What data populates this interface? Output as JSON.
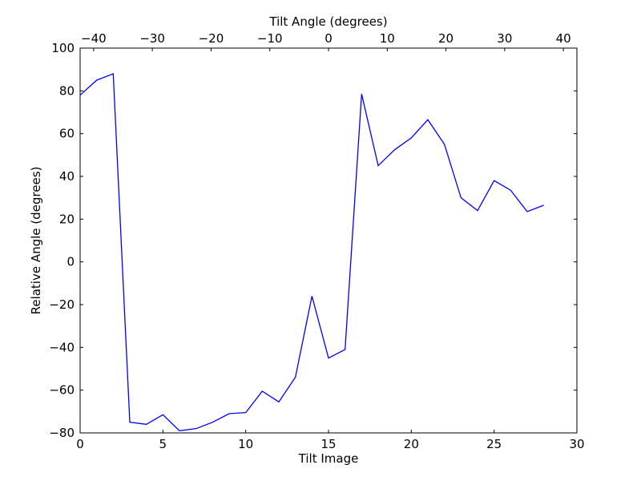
{
  "chart_data": {
    "type": "line",
    "title": "",
    "xlabel": "Tilt Image",
    "ylabel": "Relative Angle (degrees)",
    "x2label": "Tilt Angle (degrees)",
    "xlim": [
      0,
      30
    ],
    "ylim": [
      -80,
      100
    ],
    "x2lim": [
      -42.3,
      42.3
    ],
    "grid": false,
    "line_color": "#0000ff",
    "xticks": [
      0,
      5,
      10,
      15,
      20,
      25,
      30
    ],
    "xtick_labels": [
      "0",
      "5",
      "10",
      "15",
      "20",
      "25",
      "30"
    ],
    "yticks": [
      -80,
      -60,
      -40,
      -20,
      0,
      20,
      40,
      60,
      80,
      100
    ],
    "ytick_labels": [
      "−80",
      "−60",
      "−40",
      "−20",
      "0",
      "20",
      "40",
      "60",
      "80",
      "100"
    ],
    "x2ticks": [
      -40,
      -30,
      -20,
      -10,
      0,
      10,
      20,
      30,
      40
    ],
    "x2tick_labels": [
      "−40",
      "−30",
      "−20",
      "−10",
      "0",
      "10",
      "20",
      "30",
      "40"
    ],
    "series": [
      {
        "x": [
          0,
          1,
          2,
          3,
          4,
          5,
          6,
          7,
          8,
          9,
          10,
          11,
          12,
          13,
          14,
          15,
          16,
          17,
          18,
          19,
          20,
          21,
          22,
          23,
          24,
          25,
          26,
          27,
          28
        ],
        "y": [
          78,
          85,
          88,
          -75,
          -76,
          -71.5,
          -79,
          -78,
          -75,
          -71,
          -70.5,
          -60.5,
          -65.5,
          -54,
          -16,
          -45,
          -41,
          78.5,
          45,
          52.5,
          58,
          66.5,
          55,
          30,
          24,
          38,
          33.5,
          23.5,
          26.5
        ]
      }
    ]
  }
}
